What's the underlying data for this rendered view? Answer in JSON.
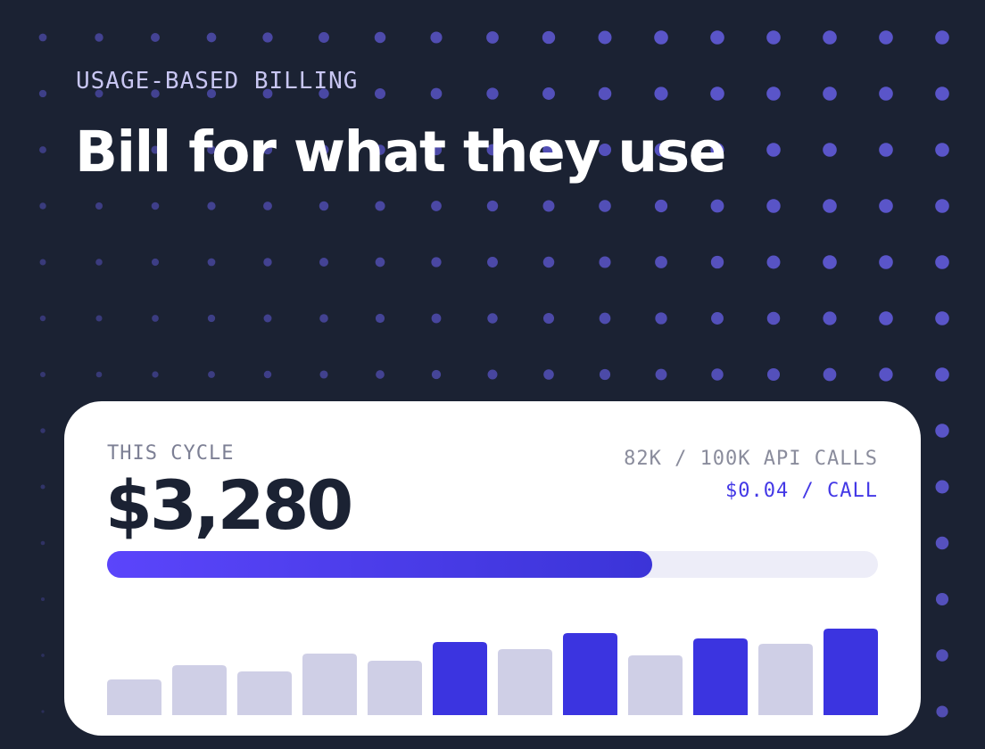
{
  "eyebrow": "USAGE-BASED BILLING",
  "headline": "Bill for what they use",
  "card": {
    "cycle_label": "THIS CYCLE",
    "amount": "$3,280",
    "usage_text": "82K / 100K API CALLS",
    "rate_text": "$0.04 / CALL",
    "progress": 0.82
  },
  "chart_data": {
    "type": "bar",
    "values": [
      40,
      56,
      49,
      69,
      61,
      82,
      74,
      92,
      67,
      86,
      80,
      97
    ],
    "highlighted": [
      false,
      false,
      false,
      false,
      false,
      true,
      false,
      true,
      false,
      true,
      false,
      true
    ],
    "ylim": [
      0,
      100
    ]
  },
  "colors": {
    "background": "#1b2233",
    "accent": "#3b34e0",
    "bar_muted": "#cfcfe6",
    "track": "#ededf8"
  }
}
